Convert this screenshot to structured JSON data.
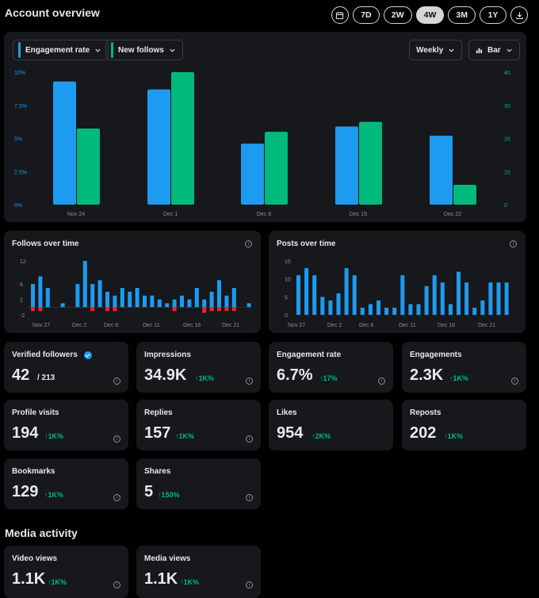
{
  "header": {
    "title": "Account overview",
    "ranges": [
      "7D",
      "2W",
      "4W",
      "3M",
      "1Y"
    ],
    "active_range": "4W"
  },
  "main_chart": {
    "pill_left": "Engagement rate",
    "pill_middle": "New follows",
    "pill_period": "Weekly",
    "pill_type": "Bar",
    "colors": {
      "engagement": "#1d9bf0",
      "follows": "#00ba7c"
    }
  },
  "follows_card": {
    "title": "Follows over time"
  },
  "posts_card": {
    "title": "Posts over time"
  },
  "metrics": [
    {
      "label": "Verified followers",
      "value": "42",
      "extra": "/ 213",
      "change": ""
    },
    {
      "label": "Impressions",
      "value": "34.9K",
      "change": "↑1K%"
    },
    {
      "label": "Engagement rate",
      "value": "6.7%",
      "change": "↑17%"
    },
    {
      "label": "Engagements",
      "value": "2.3K",
      "change": "↑1K%"
    },
    {
      "label": "Profile visits",
      "value": "194",
      "change": "↑1K%"
    },
    {
      "label": "Replies",
      "value": "157",
      "change": "↑1K%"
    },
    {
      "label": "Likes",
      "value": "954",
      "change": "↑2K%"
    },
    {
      "label": "Reposts",
      "value": "202",
      "change": "↑1K%"
    },
    {
      "label": "Bookmarks",
      "value": "129",
      "change": "↑1K%"
    },
    {
      "label": "Shares",
      "value": "5",
      "change": "↑150%"
    }
  ],
  "media": {
    "title": "Media activity",
    "metrics": [
      {
        "label": "Video views",
        "value": "1.1K",
        "change": "↑1K%"
      },
      {
        "label": "Media views",
        "value": "1.1K",
        "change": "↑1K%"
      }
    ]
  },
  "chart_data": [
    {
      "type": "bar",
      "categories": [
        "Nov 24",
        "Dec 1",
        "Dec 8",
        "Dec 15",
        "Dec 22"
      ],
      "series": [
        {
          "name": "Engagement rate",
          "axis": "left",
          "values": [
            9.3,
            8.7,
            4.6,
            5.9,
            5.2
          ]
        },
        {
          "name": "New follows",
          "axis": "right",
          "values": [
            23,
            40,
            22,
            25,
            6
          ]
        }
      ],
      "ylim_left": [
        0,
        10
      ],
      "yticks_left": [
        "0%",
        "2.5%",
        "5%",
        "7.5%",
        "10%"
      ],
      "ylim_right": [
        0,
        40
      ],
      "yticks_right": [
        "0",
        "10",
        "20",
        "30",
        "40"
      ],
      "grid": false,
      "legend": "top-left"
    },
    {
      "type": "bar",
      "title": "Follows over time",
      "xticks": [
        "Nov 27",
        "Dec 2",
        "Dec 6",
        "Dec 11",
        "Dec 16",
        "Dec 21"
      ],
      "yticks": [
        "-2",
        "2",
        "6",
        "12"
      ],
      "ylim": [
        -2,
        12
      ],
      "gains": [
        6,
        8,
        5,
        0,
        1,
        0,
        6,
        12,
        6,
        7,
        4,
        3,
        5,
        4,
        5,
        3,
        3,
        2,
        1,
        2,
        3,
        2,
        5,
        2,
        4,
        7,
        3,
        5,
        0,
        1
      ],
      "losses": [
        -1,
        -1,
        0,
        0,
        0,
        0,
        0,
        0,
        -1,
        0,
        -1,
        -1,
        0,
        0,
        0,
        0,
        0,
        0,
        0,
        -1,
        0,
        0,
        0,
        -1.5,
        -1,
        -1,
        -1,
        -1,
        0,
        0
      ],
      "colors": {
        "gain": "#1d9bf0",
        "loss": "#f4212e"
      }
    },
    {
      "type": "bar",
      "title": "Posts over time",
      "xticks": [
        "Nov 27",
        "Dec 2",
        "Dec 6",
        "Dec 11",
        "Dec 16",
        "Dec 21"
      ],
      "yticks": [
        "0",
        "5",
        "10",
        "15"
      ],
      "ylim": [
        0,
        15
      ],
      "values": [
        11,
        13,
        11,
        5,
        4,
        6,
        13,
        11,
        2,
        3,
        4,
        2,
        2,
        11,
        3,
        3,
        8,
        11,
        9,
        3,
        12,
        9,
        2,
        4,
        9,
        9,
        9
      ],
      "color": "#1d9bf0"
    }
  ]
}
